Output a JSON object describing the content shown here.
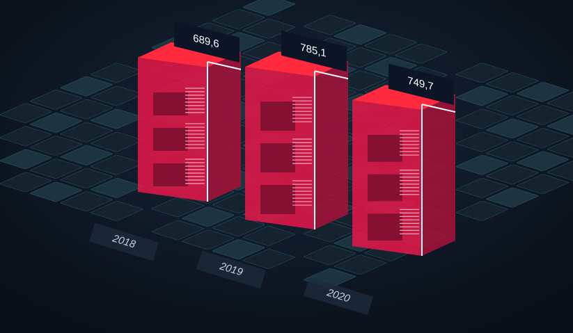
{
  "chart_data": {
    "type": "bar3d",
    "categories": [
      "2018",
      "2019",
      "2020"
    ],
    "values": [
      689.6,
      785.1,
      749.7
    ],
    "value_labels": [
      "689,6",
      "785,1",
      "749,7"
    ],
    "color": "#e8174a"
  }
}
